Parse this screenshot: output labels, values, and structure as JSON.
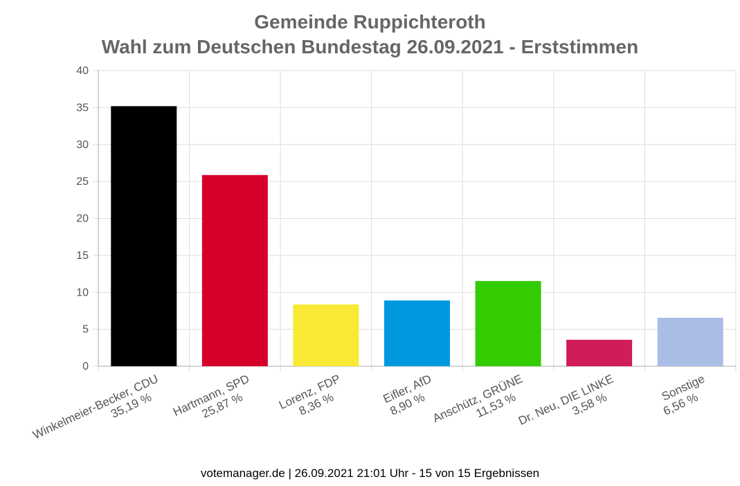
{
  "chart_data": {
    "type": "bar",
    "title": "Gemeinde Ruppichteroth",
    "subtitle": "Wahl zum Deutschen Bundestag 26.09.2021  - Erststimmen",
    "categories": [
      "Winkelmeier-Becker, CDU",
      "Hartmann, SPD",
      "Lorenz, FDP",
      "Eifler, AfD",
      "Anschütz, GRÜNE",
      "Dr. Neu, DIE LINKE",
      "Sonstige"
    ],
    "value_labels": [
      "35,19 %",
      "25,87 %",
      "8,36 %",
      "8,90 %",
      "11,53 %",
      "3,58 %",
      "6,56 %"
    ],
    "values": [
      35.19,
      25.87,
      8.36,
      8.9,
      11.53,
      3.58,
      6.56
    ],
    "colors": [
      "#000000",
      "#d7002a",
      "#f9e934",
      "#0099e0",
      "#33cc00",
      "#d01c58",
      "#aabde4"
    ],
    "ylim": [
      0,
      40
    ],
    "yticks": [
      0,
      5,
      10,
      15,
      20,
      25,
      30,
      35,
      40
    ],
    "xlabel": "",
    "ylabel": "",
    "grid": true
  },
  "footer": "votemanager.de | 26.09.2021 21:01 Uhr - 15 von 15 Ergebnissen"
}
